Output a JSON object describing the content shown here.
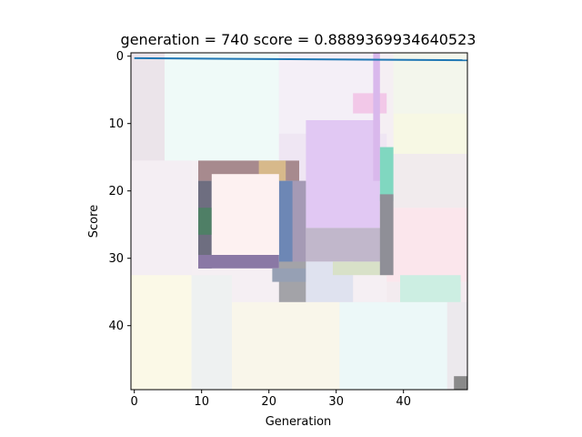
{
  "figure": {
    "background": "#ffffff"
  },
  "chart_data": {
    "type": "heatmap",
    "title": "generation = 740  score = 0.8889369934640523",
    "xlabel": "Generation",
    "ylabel": "Score",
    "xlim": [
      -0.5,
      49.5
    ],
    "ylim": [
      49.5,
      -0.5
    ],
    "xticks": [
      0,
      10,
      20,
      30,
      40
    ],
    "yticks": [
      0,
      10,
      20,
      30,
      40
    ],
    "grid": false,
    "image_size": [
      50,
      50
    ],
    "image_background": "#f5eff3",
    "patches": [
      {
        "x0": 0,
        "x1": 5,
        "y0": 0,
        "y1": 16,
        "color": "#ebe4ea"
      },
      {
        "x0": 5,
        "x1": 22,
        "y0": 0,
        "y1": 16,
        "color": "#effaf8"
      },
      {
        "x0": 22,
        "x1": 37,
        "y0": 0,
        "y1": 12,
        "color": "#f4eff7"
      },
      {
        "x0": 39,
        "x1": 50,
        "y0": 0,
        "y1": 9,
        "color": "#f3f6ec"
      },
      {
        "x0": 39,
        "x1": 50,
        "y0": 9,
        "y1": 15,
        "color": "#f7f8e4"
      },
      {
        "x0": 38,
        "x1": 50,
        "y0": 15,
        "y1": 23,
        "color": "#f1ebed"
      },
      {
        "x0": 0,
        "x1": 9,
        "y0": 16,
        "y1": 33,
        "color": "#f4eef3"
      },
      {
        "x0": 0,
        "x1": 9,
        "y0": 33,
        "y1": 50,
        "color": "#fbf9e7"
      },
      {
        "x0": 9,
        "x1": 15,
        "y0": 33,
        "y1": 50,
        "color": "#eef1f1"
      },
      {
        "x0": 15,
        "x1": 31,
        "y0": 37,
        "y1": 50,
        "color": "#f9f6ea"
      },
      {
        "x0": 31,
        "x1": 47,
        "y0": 37,
        "y1": 50,
        "color": "#ecf8f8"
      },
      {
        "x0": 38,
        "x1": 50,
        "y0": 23,
        "y1": 34,
        "color": "#fbe6ec"
      },
      {
        "x0": 38,
        "x1": 50,
        "y0": 34,
        "y1": 37,
        "color": "#f3ebef"
      },
      {
        "x0": 47,
        "x1": 50,
        "y0": 37,
        "y1": 50,
        "color": "#ece9ed"
      },
      {
        "x0": 22,
        "x1": 38,
        "y0": 12,
        "y1": 19,
        "color": "#efe6f3"
      },
      {
        "x0": 26,
        "x1": 37,
        "y0": 10,
        "y1": 26,
        "color": "#e1c8f3"
      },
      {
        "x0": 26,
        "x1": 37,
        "y0": 26,
        "y1": 30,
        "color": "#ddd3ec"
      },
      {
        "x0": 33,
        "x1": 38,
        "y0": 6,
        "y1": 9,
        "color": "#f2c8e8"
      },
      {
        "x0": 36,
        "x1": 37,
        "y0": 0,
        "y1": 19,
        "color": "#d9b8ec"
      },
      {
        "x0": 37,
        "x1": 39,
        "y0": 14,
        "y1": 22,
        "color": "#80d7c0"
      },
      {
        "x0": 10,
        "x1": 25,
        "y0": 16,
        "y1": 19,
        "color": "#a78a8e"
      },
      {
        "x0": 19,
        "x1": 23,
        "y0": 16,
        "y1": 19,
        "color": "#d7b98b"
      },
      {
        "x0": 10,
        "x1": 12,
        "y0": 19,
        "y1": 32,
        "color": "#6e6e80"
      },
      {
        "x0": 10,
        "x1": 12,
        "y0": 23,
        "y1": 27,
        "color": "#4f7f66"
      },
      {
        "x0": 10,
        "x1": 22,
        "y0": 30,
        "y1": 32,
        "color": "#8a78a5"
      },
      {
        "x0": 22,
        "x1": 25,
        "y0": 19,
        "y1": 32,
        "color": "#6d87b5"
      },
      {
        "x0": 24,
        "x1": 26,
        "y0": 19,
        "y1": 32,
        "color": "#a59ab5"
      },
      {
        "x0": 26,
        "x1": 38,
        "y0": 26,
        "y1": 31,
        "color": "#c1b7cb"
      },
      {
        "x0": 22,
        "x1": 26,
        "y0": 31,
        "y1": 37,
        "color": "#a3a3a8"
      },
      {
        "x0": 21,
        "x1": 26,
        "y0": 32,
        "y1": 34,
        "color": "#96a0b4"
      },
      {
        "x0": 26,
        "x1": 33,
        "y0": 31,
        "y1": 37,
        "color": "#dfe2ef"
      },
      {
        "x0": 30,
        "x1": 38,
        "y0": 31,
        "y1": 33,
        "color": "#d8e1c8"
      },
      {
        "x0": 37,
        "x1": 39,
        "y0": 21,
        "y1": 33,
        "color": "#8f8f97"
      },
      {
        "x0": 40,
        "x1": 49,
        "y0": 33,
        "y1": 37,
        "color": "#cceee2"
      },
      {
        "x0": 12,
        "x1": 22,
        "y0": 18,
        "y1": 30,
        "color": "#fdf1f1"
      },
      {
        "x0": 48,
        "x1": 50,
        "y0": 48,
        "y1": 50,
        "color": "#8a8a8a"
      }
    ],
    "line": {
      "x": [
        0,
        49.5
      ],
      "y": [
        0.3,
        0.6
      ],
      "color": "#1f77b4"
    }
  }
}
